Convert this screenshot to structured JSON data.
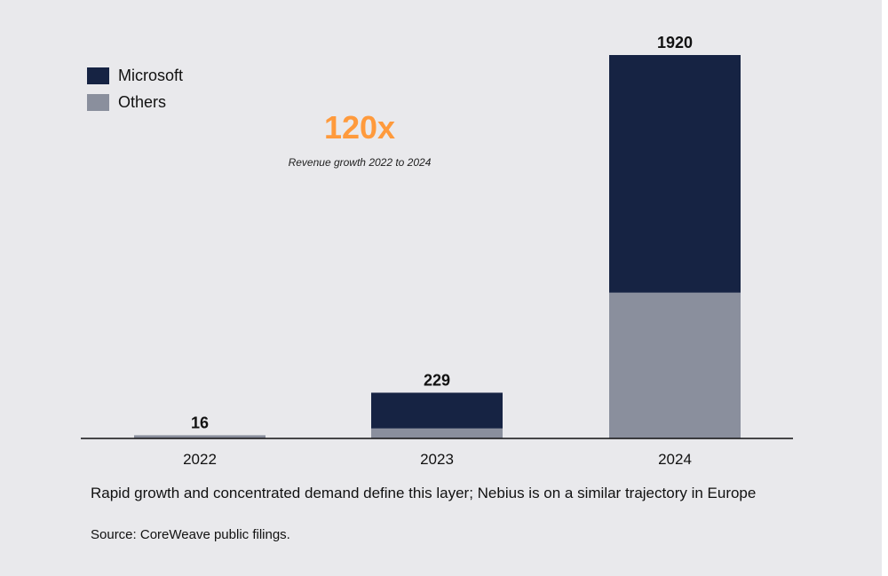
{
  "chart_data": {
    "type": "bar",
    "stacked": true,
    "categories": [
      "2022",
      "2023",
      "2024"
    ],
    "series": [
      {
        "name": "Others",
        "values": [
          16,
          50,
          730
        ],
        "color": "#8a8f9d"
      },
      {
        "name": "Microsoft",
        "values": [
          0,
          179,
          1190
        ],
        "color": "#162343"
      }
    ],
    "totals": [
      "16",
      "229",
      "1920"
    ],
    "ylim": [
      0,
      1920
    ],
    "grid": false,
    "legend": "top-left"
  },
  "callout": {
    "value": "120x",
    "text": "Revenue growth 2022 to 2024",
    "color": "#ff9a3c"
  },
  "caption": "Rapid growth and concentrated demand define this layer; Nebius is on a similar trajectory in Europe",
  "source": "Source: CoreWeave public filings."
}
